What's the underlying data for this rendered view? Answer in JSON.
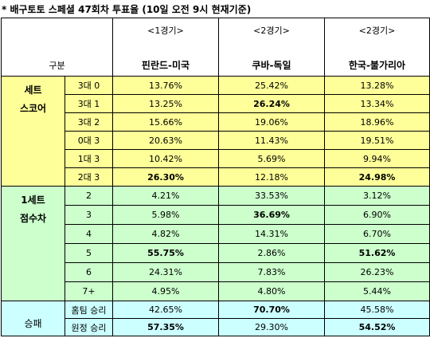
{
  "title": "* 배구토토 스페셜 47회차 투표율 (10일 오전 9시 현재기준)",
  "header": {
    "group_label": "구분",
    "games": [
      "<1경기>",
      "<2경기>",
      "<2경기>"
    ],
    "matches": [
      "핀란드-미국",
      "쿠바-독일",
      "한국-불가리아"
    ]
  },
  "sections": [
    {
      "label": [
        "세트",
        "스코어"
      ],
      "rows": [
        {
          "label": "3대 0",
          "values": [
            "13.76%",
            "25.42%",
            "13.28%"
          ]
        },
        {
          "label": "3대 1",
          "values": [
            "13.25%",
            "26.24%",
            "13.34%"
          ]
        },
        {
          "label": "3대 2",
          "values": [
            "15.66%",
            "19.06%",
            "18.96%"
          ]
        },
        {
          "label": "0대 3",
          "values": [
            "20.63%",
            "11.43%",
            "19.51%"
          ]
        },
        {
          "label": "1대 3",
          "values": [
            "10.42%",
            "5.69%",
            "9.94%"
          ]
        },
        {
          "label": "2대 3",
          "values": [
            "26.30%",
            "12.18%",
            "24.98%"
          ]
        }
      ]
    },
    {
      "label": [
        "1세트",
        "점수차"
      ],
      "rows": [
        {
          "label": "2",
          "values": [
            "4.21%",
            "33.53%",
            "3.12%"
          ]
        },
        {
          "label": "3",
          "values": [
            "5.98%",
            "36.69%",
            "6.90%"
          ]
        },
        {
          "label": "4",
          "values": [
            "4.82%",
            "14.31%",
            "6.70%"
          ]
        },
        {
          "label": "5",
          "values": [
            "55.75%",
            "2.86%",
            "51.62%"
          ]
        },
        {
          "label": "6",
          "values": [
            "24.31%",
            "7.83%",
            "26.23%"
          ]
        },
        {
          "label": "7+",
          "values": [
            "4.95%",
            "4.80%",
            "5.44%"
          ]
        }
      ]
    },
    {
      "label": [
        "승패"
      ],
      "rows": [
        {
          "label": "홈팀 승리",
          "values": [
            "42.65%",
            "70.70%",
            "45.58%"
          ]
        },
        {
          "label": "원정 승리",
          "values": [
            "57.35%",
            "29.30%",
            "54.52%"
          ]
        }
      ]
    }
  ]
}
